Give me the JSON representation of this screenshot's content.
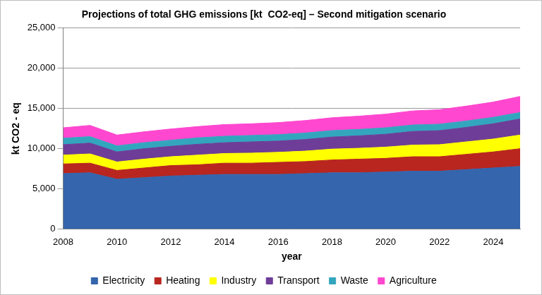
{
  "chart_data": {
    "type": "area",
    "title": "Projections of total GHG emissions [kt  CO2-eq] – Second mitigation scenario",
    "x_label": "year",
    "y_label": "kt CO2 - eq",
    "categories": [
      2008,
      null,
      2010,
      null,
      2012,
      null,
      2014,
      null,
      2016,
      null,
      2018,
      null,
      2020,
      null,
      2022,
      null,
      2024,
      null
    ],
    "series": [
      {
        "name": "Electricity",
        "color": "#3465ad",
        "values": [
          6900,
          7000,
          6200,
          6400,
          6600,
          6700,
          6800,
          6800,
          6800,
          6900,
          7000,
          7000,
          7100,
          7200,
          7200,
          7400,
          7600,
          7800
        ]
      },
      {
        "name": "Heating",
        "color": "#b8261f",
        "values": [
          1200,
          1200,
          1100,
          1200,
          1300,
          1300,
          1400,
          1400,
          1500,
          1500,
          1600,
          1700,
          1700,
          1800,
          1800,
          1900,
          2000,
          2200
        ]
      },
      {
        "name": "Industry",
        "color": "#ffff00",
        "values": [
          1100,
          1150,
          1050,
          1100,
          1100,
          1200,
          1200,
          1250,
          1250,
          1300,
          1350,
          1350,
          1400,
          1450,
          1500,
          1550,
          1600,
          1700
        ]
      },
      {
        "name": "Transport",
        "color": "#6e3d98",
        "values": [
          1300,
          1350,
          1250,
          1300,
          1300,
          1350,
          1350,
          1400,
          1400,
          1450,
          1500,
          1550,
          1600,
          1700,
          1750,
          1800,
          1900,
          2000
        ]
      },
      {
        "name": "Waste",
        "color": "#33a6be",
        "values": [
          800,
          800,
          750,
          750,
          750,
          800,
          800,
          800,
          800,
          800,
          800,
          800,
          800,
          800,
          800,
          800,
          800,
          800
        ]
      },
      {
        "name": "Agriculture",
        "color": "#ff47cf",
        "values": [
          1300,
          1400,
          1350,
          1350,
          1400,
          1400,
          1450,
          1450,
          1500,
          1550,
          1600,
          1650,
          1700,
          1750,
          1800,
          1850,
          1900,
          2000
        ]
      }
    ],
    "stacked": true,
    "ylim": [
      0,
      25000
    ],
    "yticks": [
      0,
      {
        "value": 5000,
        "label": "5,000"
      },
      {
        "value": 10000,
        "label": "10,000"
      },
      {
        "value": 15000,
        "label": "15,000"
      },
      {
        "value": 20000,
        "label": "20,000"
      },
      {
        "value": 25000,
        "label": "25,000"
      }
    ],
    "grid": true,
    "legend": "bottom"
  }
}
